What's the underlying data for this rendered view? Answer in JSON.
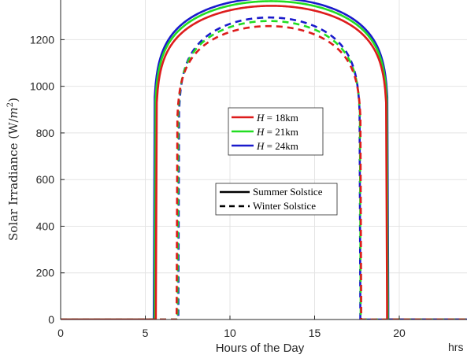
{
  "chart_data": {
    "type": "line",
    "xlabel": "Hours of the Day",
    "ylabel_main": "Solar Irradiance (W/",
    "ylabel_sup": "2",
    "ylabel_sym": "m",
    "ylabel_close": ")",
    "x_unit": "hrs",
    "xlim": [
      0,
      24
    ],
    "ylim": [
      0,
      1370
    ],
    "xticks": [
      0,
      5,
      10,
      15,
      20
    ],
    "yticks": [
      0,
      200,
      400,
      600,
      800,
      1000,
      1200
    ],
    "grid": true,
    "legend_altitude": {
      "placement": "center",
      "entries": [
        {
          "var": "H",
          "eq": " = 18km",
          "color": "#dd1c1c"
        },
        {
          "var": "H",
          "eq": " = 21km",
          "color": "#22dd22"
        },
        {
          "var": "H",
          "eq": " = 24km",
          "color": "#1a1acc"
        }
      ]
    },
    "legend_season": {
      "placement": "center",
      "entries": [
        {
          "label": "Summer Solstice",
          "style": "solid"
        },
        {
          "label": "Winter Solstice",
          "style": "dashed"
        }
      ]
    },
    "series": [
      {
        "altitude": "18km",
        "season": "summer",
        "color": "#dd1c1c",
        "sunrise": 5.62,
        "sunset": 19.28,
        "peak": 1345
      },
      {
        "altitude": "21km",
        "season": "summer",
        "color": "#22dd22",
        "sunrise": 5.55,
        "sunset": 19.32,
        "peak": 1365
      },
      {
        "altitude": "24km",
        "season": "summer",
        "color": "#1a1acc",
        "sunrise": 5.5,
        "sunset": 19.35,
        "peak": 1378
      },
      {
        "altitude": "18km",
        "season": "winter",
        "color": "#dd1c1c",
        "sunrise": 6.85,
        "sunset": 17.75,
        "peak": 1258
      },
      {
        "altitude": "21km",
        "season": "winter",
        "color": "#22dd22",
        "sunrise": 6.9,
        "sunset": 17.72,
        "peak": 1280
      },
      {
        "altitude": "24km",
        "season": "winter",
        "color": "#1a1acc",
        "sunrise": 6.95,
        "sunset": 17.7,
        "peak": 1295
      }
    ]
  }
}
